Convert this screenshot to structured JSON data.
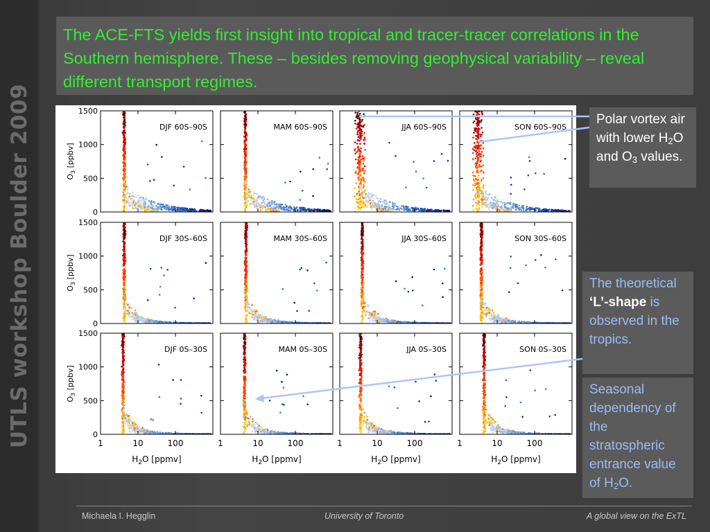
{
  "slide": {
    "side_title": "UTLS workshop Boulder 2009",
    "header": "The ACE-FTS yields first insight into tropical and tracer-tracer correlations in the Southern hemisphere. These – besides removing geophysical variability – reveal different transport regimes.",
    "colors": {
      "header_text": "#33ee33",
      "callout_text_blue": "#9bbcf6",
      "arrow": "#a9c6f5"
    }
  },
  "callouts": {
    "polar": {
      "pre": "Polar vortex air with lower H",
      "sub1": "2",
      "mid": "O and O",
      "sub2": "3",
      "post": " values."
    },
    "lshape": {
      "pre": "The theoretical ",
      "bold": "‘L’-shape",
      "post": " is observed in the tropics."
    },
    "seasonal": {
      "pre": "Seasonal dependency of the stratospheric entrance value of H",
      "sub": "2",
      "post": "O."
    }
  },
  "footer": {
    "author": "Michaela I. Hegglin",
    "institution": "University of Toronto",
    "talk_title": "A global view on the ExTL"
  },
  "chart_data": {
    "type": "scatter",
    "layout": "grid 3 rows x 4 columns",
    "x_axis": {
      "label_base": "H",
      "label_sub": "2",
      "label_rest": "O [ppmv]",
      "scale": "log",
      "range": [
        1,
        1000
      ],
      "ticks": [
        "1",
        "10",
        "100"
      ]
    },
    "y_axis": {
      "label_base": "O",
      "label_sub": "3",
      "label_rest": " [ppbv]",
      "scale": "linear",
      "range": [
        0,
        1500
      ],
      "ticks": [
        "0",
        "500",
        "1000",
        "1500"
      ]
    },
    "color_scale": "dark red / red / yellow (stratosphere) to light blue / dark blue (troposphere)",
    "panels": [
      {
        "label": "DJF 60S–90S",
        "season": "DJF",
        "lat": "60S–90S",
        "strat_h2o": 4.3,
        "polar": false
      },
      {
        "label": "MAM 60S–90S",
        "season": "MAM",
        "lat": "60S–90S",
        "strat_h2o": 4.6,
        "polar": false
      },
      {
        "label": "JJA 60S–90S",
        "season": "JJA",
        "lat": "60S–90S",
        "strat_h2o": 3.3,
        "polar": true
      },
      {
        "label": "SON 60S–90S",
        "season": "SON",
        "lat": "60S–90S",
        "strat_h2o": 3.0,
        "polar": true
      },
      {
        "label": "DJF 30S–60S",
        "season": "DJF",
        "lat": "30S–60S",
        "strat_h2o": 4.3,
        "polar": false
      },
      {
        "label": "MAM 30S–60S",
        "season": "MAM",
        "lat": "30S–60S",
        "strat_h2o": 4.8,
        "polar": false
      },
      {
        "label": "JJA 30S–60S",
        "season": "JJA",
        "lat": "30S–60S",
        "strat_h2o": 4.0,
        "polar": false
      },
      {
        "label": "SON 30S–60S",
        "season": "SON",
        "lat": "30S–60S",
        "strat_h2o": 3.8,
        "polar": false
      },
      {
        "label": "DJF 0S–30S",
        "season": "DJF",
        "lat": "0S–30S",
        "strat_h2o": 4.0,
        "polar": false
      },
      {
        "label": "MAM 0S–30S",
        "season": "MAM",
        "lat": "0S–30S",
        "strat_h2o": 4.4,
        "polar": false
      },
      {
        "label": "JJA 0S–30S",
        "season": "JJA",
        "lat": "0S–30S",
        "strat_h2o": 3.6,
        "polar": false
      },
      {
        "label": "SON 0S–30S",
        "season": "SON",
        "lat": "0S–30S",
        "strat_h2o": 4.5,
        "polar": false
      }
    ]
  }
}
